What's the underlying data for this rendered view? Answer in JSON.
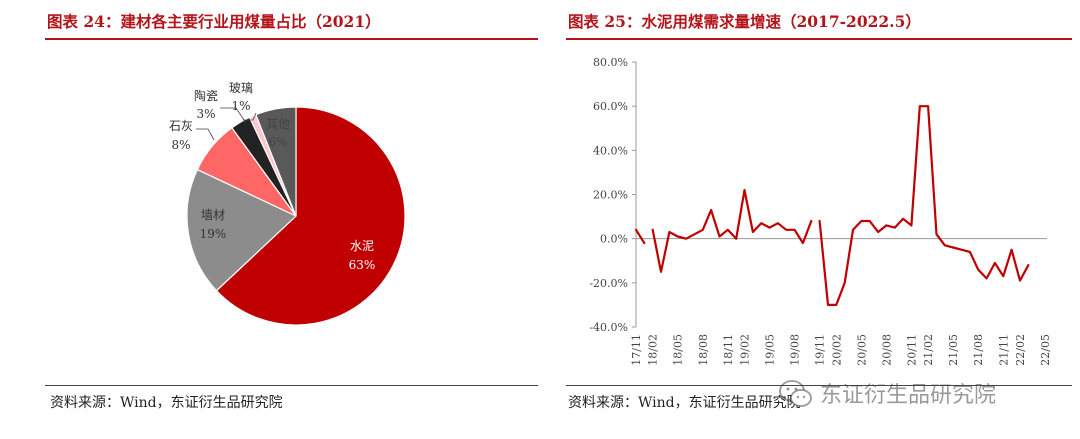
{
  "left": {
    "title": "图表 24：建材各主要行业用煤量占比（2021）",
    "source": "资料来源：Wind，东证衍生品研究院"
  },
  "right": {
    "title": "图表 25：水泥用煤需求量增速（2017-2022.5）",
    "source": "资料来源：Wind，东证衍生品研究院"
  },
  "watermark": {
    "text": "东证衍生品研究院",
    "icon": "wechat-icon"
  },
  "colors": {
    "accent": "#b3151a",
    "cement": "#c00000",
    "wall": "#8c8c8c",
    "lime": "#ff6666",
    "ceramic": "#222222",
    "glass": "#ffc7ce",
    "other": "#595959"
  },
  "chart_data": [
    {
      "type": "pie",
      "slices": [
        {
          "label": "水泥",
          "value": 63,
          "value_label": "63%"
        },
        {
          "label": "墙材",
          "value": 19,
          "value_label": "19%"
        },
        {
          "label": "石灰",
          "value": 8,
          "value_label": "8%"
        },
        {
          "label": "陶瓷",
          "value": 3,
          "value_label": "3%"
        },
        {
          "label": "玻璃",
          "value": 1,
          "value_label": "1%"
        },
        {
          "label": "其他",
          "value": 6,
          "value_label": "6%"
        }
      ]
    },
    {
      "type": "line",
      "ylim": [
        -40,
        80
      ],
      "yticks": [
        "80.0%",
        "60.0%",
        "40.0%",
        "20.0%",
        "0.0%",
        "-20.0%",
        "-40.0%"
      ],
      "x_tick_labels": [
        "17/11",
        "18/02",
        "18/05",
        "18/08",
        "18/11",
        "19/02",
        "19/05",
        "19/08",
        "19/11",
        "20/02",
        "20/05",
        "20/08",
        "20/11",
        "21/02",
        "21/05",
        "21/08",
        "21/11",
        "22/02",
        "22/05"
      ],
      "x": [
        "17/11",
        "17/12",
        "18/02",
        "18/03",
        "18/04",
        "18/05",
        "18/06",
        "18/07",
        "18/08",
        "18/09",
        "18/10",
        "18/11",
        "18/12",
        "19/02",
        "19/03",
        "19/04",
        "19/05",
        "19/06",
        "19/07",
        "19/08",
        "19/09",
        "19/10",
        "19/11",
        "19/12",
        "20/02",
        "20/03",
        "20/04",
        "20/05",
        "20/06",
        "20/07",
        "20/08",
        "20/09",
        "20/10",
        "20/11",
        "20/12",
        "21/02",
        "21/03",
        "21/04",
        "21/05",
        "21/06",
        "21/07",
        "21/08",
        "21/09",
        "21/10",
        "21/11",
        "21/12",
        "22/02",
        "22/03",
        "22/04",
        "22/05"
      ],
      "series": [
        {
          "segments": [
            [
              4,
              -2
            ],
            [
              4,
              -15,
              3,
              1,
              0,
              2,
              4,
              13,
              1,
              4,
              0,
              22,
              3,
              7,
              5,
              7,
              4,
              4,
              -2,
              8
            ],
            [
              8,
              -30,
              -30,
              -20,
              4,
              8,
              8,
              3,
              6,
              5,
              9,
              6,
              60,
              60,
              2,
              -3,
              -4,
              -5,
              -6,
              -14,
              -18,
              -11,
              -17,
              -5,
              -19,
              -12
            ]
          ]
        }
      ]
    }
  ]
}
